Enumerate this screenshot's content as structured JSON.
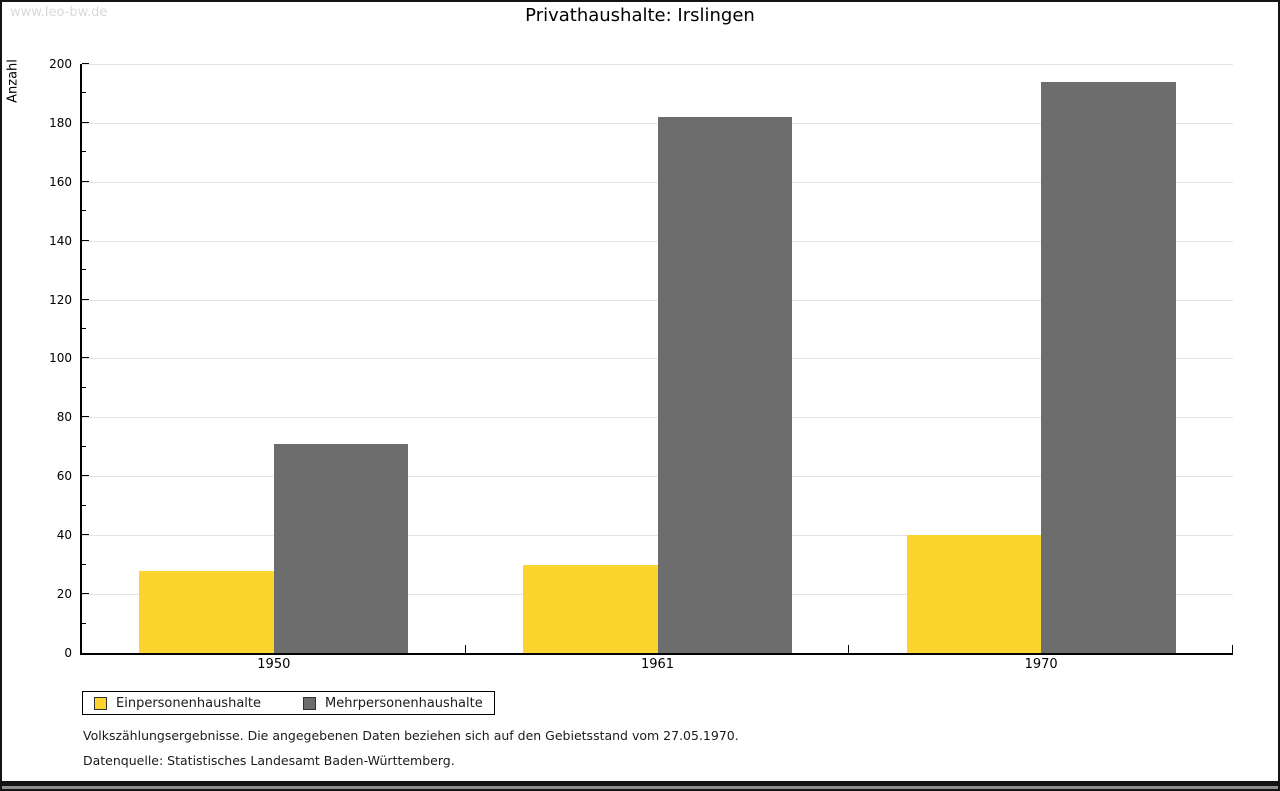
{
  "watermark": "www.leo-bw.de",
  "title": "Privathaushalte: Irslingen",
  "chart_data": {
    "type": "bar",
    "title": "Privathaushalte: Irslingen",
    "categories": [
      "1950",
      "1961",
      "1970"
    ],
    "series": [
      {
        "name": "Einpersonenhaushalte",
        "color": "#fcd42e",
        "values": [
          28,
          30,
          40
        ]
      },
      {
        "name": "Mehrpersonenhaushalte",
        "color": "#6d6d6d",
        "values": [
          71,
          182,
          194
        ]
      }
    ],
    "xlabel": "",
    "ylabel": "Anzahl",
    "ylim": [
      0,
      200
    ],
    "yticks": [
      0,
      20,
      40,
      60,
      80,
      100,
      120,
      140,
      160,
      180,
      200
    ],
    "minor_tick_step": 10,
    "grid": true,
    "gridline_color": "#e4e4e4",
    "legend_position": "bottom-left"
  },
  "footer": {
    "line1": "Volkszählungsergebnisse. Die angegebenen Daten beziehen sich auf den Gebietsstand vom 27.05.1970.",
    "line2": "Datenquelle: Statistisches Landesamt Baden-Württemberg."
  }
}
